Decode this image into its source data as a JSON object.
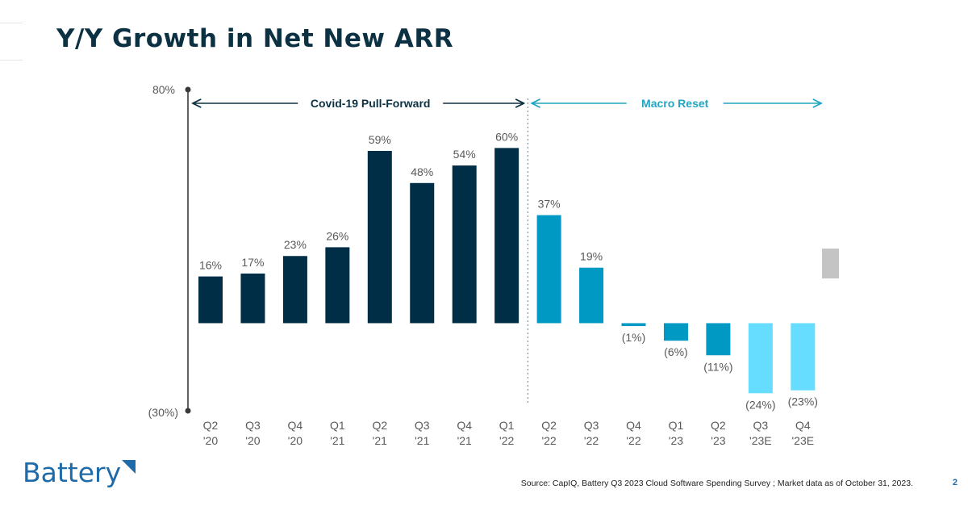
{
  "slide": {
    "title": "Y/Y Growth in Net New ARR",
    "source": "Source: CapIQ, Battery Q3 2023 Cloud Software Spending Survey ; Market data as of October 31, 2023.",
    "page_number": "2",
    "logo_text": "Battery"
  },
  "colors": {
    "title": "#0b3142",
    "dark_bar": "#002e46",
    "mid_bar": "#0099c4",
    "light_bar": "#66ddff",
    "legend_swatch": "#c4c4c4",
    "axis": "#3a3a3a",
    "label": "#595959",
    "brand": "#1f6aa8"
  },
  "chart_data": {
    "type": "bar",
    "title": "Y/Y Growth in Net New ARR",
    "categories": [
      [
        "Q2",
        "'20"
      ],
      [
        "Q3",
        "'20"
      ],
      [
        "Q4",
        "'20"
      ],
      [
        "Q1",
        "'21"
      ],
      [
        "Q2",
        "'21"
      ],
      [
        "Q3",
        "'21"
      ],
      [
        "Q4",
        "'21"
      ],
      [
        "Q1",
        "'22"
      ],
      [
        "Q2",
        "'22"
      ],
      [
        "Q3",
        "'22"
      ],
      [
        "Q4",
        "'22"
      ],
      [
        "Q1",
        "'23"
      ],
      [
        "Q2",
        "'23"
      ],
      [
        "Q3",
        "'23E"
      ],
      [
        "Q4",
        "'23E"
      ]
    ],
    "values": [
      16,
      17,
      23,
      26,
      59,
      48,
      54,
      60,
      37,
      19,
      -1,
      -6,
      -11,
      -24,
      -23
    ],
    "labels": [
      "16%",
      "17%",
      "23%",
      "26%",
      "59%",
      "48%",
      "54%",
      "60%",
      "37%",
      "19%",
      "(1%)",
      "(6%)",
      "(11%)",
      "(24%)",
      "(23%)"
    ],
    "groups": [
      "dark",
      "dark",
      "dark",
      "dark",
      "dark",
      "dark",
      "dark",
      "dark",
      "mid",
      "mid",
      "mid",
      "mid",
      "mid",
      "light",
      "light"
    ],
    "ylim": [
      -30,
      80
    ],
    "ytick_labels": [
      "80%",
      "(30%)"
    ],
    "xlabel": "",
    "ylabel": "",
    "periods": [
      {
        "label": "Covid-19 Pull-Forward",
        "from_index": 0,
        "to_index": 7,
        "color": "#0b3142"
      },
      {
        "label": "Macro Reset",
        "from_index": 8,
        "to_index": 14,
        "color": "#22a5c2"
      }
    ],
    "divider_after_index": 7
  }
}
